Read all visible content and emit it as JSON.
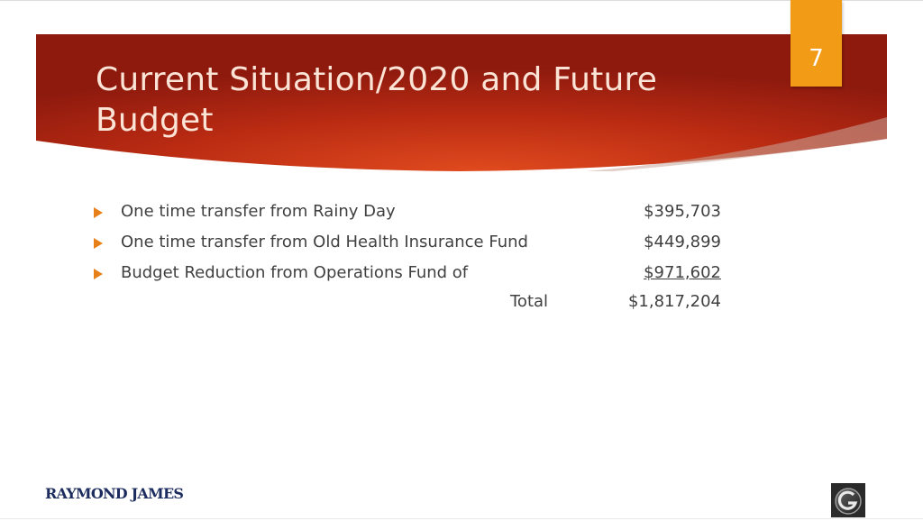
{
  "slide": {
    "number": "7",
    "title": "Current Situation/2020 and Future Budget"
  },
  "bullets": [
    {
      "text": "One time transfer from Rainy Day",
      "amount": "$395,703"
    },
    {
      "text": "One time transfer from Old Health Insurance Fund",
      "amount": "$449,899"
    },
    {
      "text": "Budget Reduction from Operations Fund of",
      "amount": "$971,602"
    }
  ],
  "total": {
    "label": "Total",
    "amount": "$1,817,204"
  },
  "footer": {
    "left_logo_text": "RAYMOND JAMES",
    "right_logo_icon": "g-emblem-icon"
  },
  "colors": {
    "banner_dark": "#8e1a0e",
    "banner_light": "#e0461e",
    "accent": "#f29b17",
    "bullet_arrow": "#e8801a",
    "body_text": "#404040",
    "logo_navy": "#1c2c5e"
  }
}
